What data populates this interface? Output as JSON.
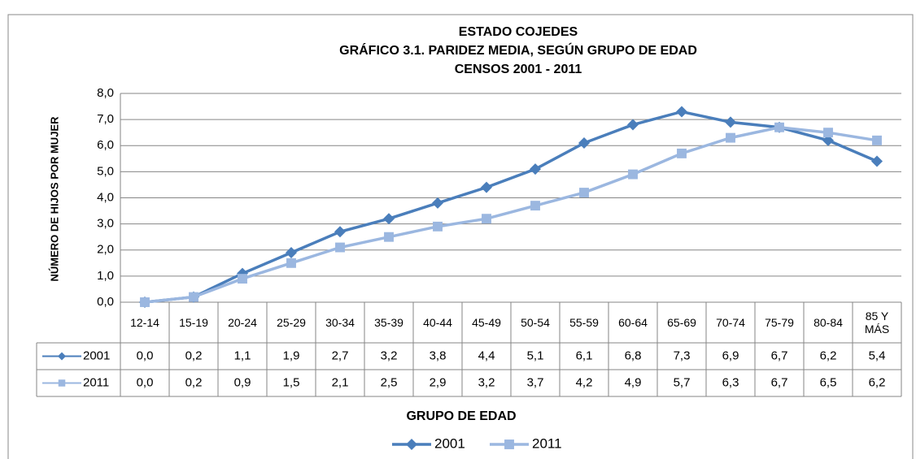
{
  "chart_data": {
    "type": "line",
    "title": [
      "ESTADO COJEDES",
      "GRÁFICO 3.1. PARIDEZ MEDIA, SEGÚN GRUPO DE EDAD",
      "CENSOS 2001 - 2011"
    ],
    "xlabel": "GRUPO DE EDAD",
    "ylabel": "NÚMERO DE HIJOS POR MUJER",
    "categories": [
      "12-14",
      "15-19",
      "20-24",
      "25-29",
      "30-34",
      "35-39",
      "40-44",
      "45-49",
      "50-54",
      "55-59",
      "60-64",
      "65-69",
      "70-74",
      "75-79",
      "80-84",
      "85 Y MÁS"
    ],
    "series": [
      {
        "name": "2001",
        "color": "#4a7ebb",
        "marker": "diamond",
        "values": [
          0.0,
          0.2,
          1.1,
          1.9,
          2.7,
          3.2,
          3.8,
          4.4,
          5.1,
          6.1,
          6.8,
          7.3,
          6.9,
          6.7,
          6.2,
          5.4
        ],
        "value_labels": [
          "0,0",
          "0,2",
          "1,1",
          "1,9",
          "2,7",
          "3,2",
          "3,8",
          "4,4",
          "5,1",
          "6,1",
          "6,8",
          "7,3",
          "6,9",
          "6,7",
          "6,2",
          "5,4"
        ]
      },
      {
        "name": "2011",
        "color": "#9bb7e0",
        "marker": "square",
        "values": [
          0.0,
          0.2,
          0.9,
          1.5,
          2.1,
          2.5,
          2.9,
          3.2,
          3.7,
          4.2,
          4.9,
          5.7,
          6.3,
          6.7,
          6.5,
          6.2
        ],
        "value_labels": [
          "0,0",
          "0,2",
          "0,9",
          "1,5",
          "2,1",
          "2,5",
          "2,9",
          "3,2",
          "3,7",
          "4,2",
          "4,9",
          "5,7",
          "6,3",
          "6,7",
          "6,5",
          "6,2"
        ]
      }
    ],
    "ylim": [
      0,
      8
    ],
    "yticks": [
      {
        "value": 0,
        "label": "0,0"
      },
      {
        "value": 1,
        "label": "1,0"
      },
      {
        "value": 2,
        "label": "2,0"
      },
      {
        "value": 3,
        "label": "3,0"
      },
      {
        "value": 4,
        "label": "4,0"
      },
      {
        "value": 5,
        "label": "5,0"
      },
      {
        "value": 6,
        "label": "6,0"
      },
      {
        "value": 7,
        "label": "7,0"
      },
      {
        "value": 8,
        "label": "8,0"
      }
    ],
    "grid": true,
    "legend": "bottom"
  }
}
